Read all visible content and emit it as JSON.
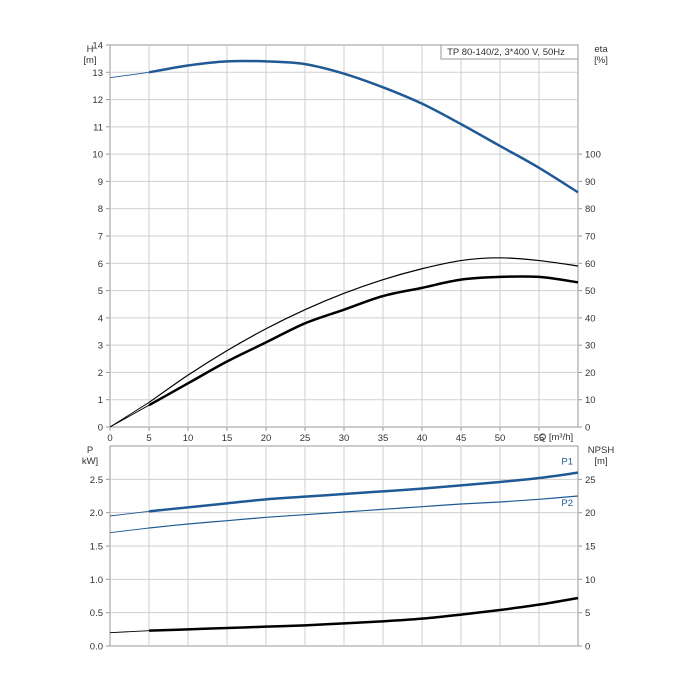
{
  "chart_data": [
    {
      "type": "line",
      "title": "TP 80-140/2, 3*400 V, 50Hz",
      "xlabel": "Q [m³/h]",
      "x_ticks": [
        "0",
        "5",
        "10",
        "15",
        "20",
        "25",
        "30",
        "35",
        "40",
        "45",
        "50",
        "55"
      ],
      "xlim": [
        0,
        60
      ],
      "ylabel_left": [
        "H",
        "[m]"
      ],
      "ylim_left": [
        0,
        14
      ],
      "y_ticks_left": [
        "0",
        "1",
        "2",
        "3",
        "4",
        "5",
        "6",
        "7",
        "8",
        "9",
        "10",
        "11",
        "12",
        "13",
        "14"
      ],
      "ylabel_right": [
        "eta",
        "[%]"
      ],
      "ylim_right": [
        0,
        140
      ],
      "y_ticks_right": [
        "0",
        "10",
        "20",
        "30",
        "40",
        "50",
        "60",
        "70",
        "80",
        "90",
        "100"
      ],
      "grid": true,
      "series": [
        {
          "axis": "left",
          "color": "#1f5a96",
          "x": [
            0,
            5,
            10,
            15,
            20,
            25,
            30,
            35,
            40,
            45,
            50,
            55,
            60
          ],
          "y": [
            12.8,
            13.0,
            13.25,
            13.4,
            13.4,
            13.3,
            12.95,
            12.45,
            11.85,
            11.1,
            10.3,
            9.5,
            8.6
          ]
        },
        {
          "axis": "right",
          "color": "#000000",
          "x": [
            0,
            5,
            10,
            15,
            20,
            25,
            30,
            35,
            40,
            45,
            50,
            55,
            60
          ],
          "y": [
            0,
            9,
            19,
            28,
            36,
            43,
            49,
            54,
            58,
            61,
            62,
            61,
            59
          ]
        },
        {
          "axis": "right",
          "color": "#000000",
          "x": [
            0,
            5,
            10,
            15,
            20,
            25,
            30,
            35,
            40,
            45,
            50,
            55,
            60
          ],
          "y": [
            0,
            8,
            16,
            24,
            31,
            38,
            43,
            48,
            51,
            54,
            55,
            55,
            53
          ]
        }
      ]
    },
    {
      "type": "line",
      "xlim": [
        0,
        60
      ],
      "ylabel_left": [
        "P",
        "kW]"
      ],
      "ylim_left": [
        0,
        3
      ],
      "y_ticks_left": [
        "0.0",
        "0.5",
        "1.0",
        "1.5",
        "2.0",
        "2.5"
      ],
      "ylabel_right": [
        "NPSH",
        "[m]"
      ],
      "ylim_right": [
        0,
        30
      ],
      "y_ticks_right": [
        "0",
        "5",
        "10",
        "15",
        "20",
        "25"
      ],
      "grid": true,
      "series": [
        {
          "name": "P1",
          "axis": "left",
          "color": "#1f5a96",
          "x": [
            0,
            5,
            10,
            15,
            20,
            25,
            30,
            35,
            40,
            45,
            50,
            55,
            60
          ],
          "y": [
            1.95,
            2.02,
            2.08,
            2.14,
            2.2,
            2.24,
            2.28,
            2.32,
            2.36,
            2.41,
            2.46,
            2.52,
            2.6
          ]
        },
        {
          "name": "P2",
          "axis": "left",
          "color": "#1f5a96",
          "x": [
            0,
            5,
            10,
            15,
            20,
            25,
            30,
            35,
            40,
            45,
            50,
            55,
            60
          ],
          "y": [
            1.7,
            1.77,
            1.83,
            1.88,
            1.93,
            1.97,
            2.01,
            2.05,
            2.09,
            2.13,
            2.16,
            2.2,
            2.25
          ]
        },
        {
          "axis": "right",
          "color": "#000000",
          "x": [
            0,
            5,
            10,
            15,
            20,
            25,
            30,
            35,
            40,
            45,
            50,
            55,
            60
          ],
          "y": [
            2.0,
            2.3,
            2.5,
            2.7,
            2.9,
            3.1,
            3.4,
            3.7,
            4.1,
            4.7,
            5.4,
            6.2,
            7.2
          ]
        }
      ]
    }
  ]
}
